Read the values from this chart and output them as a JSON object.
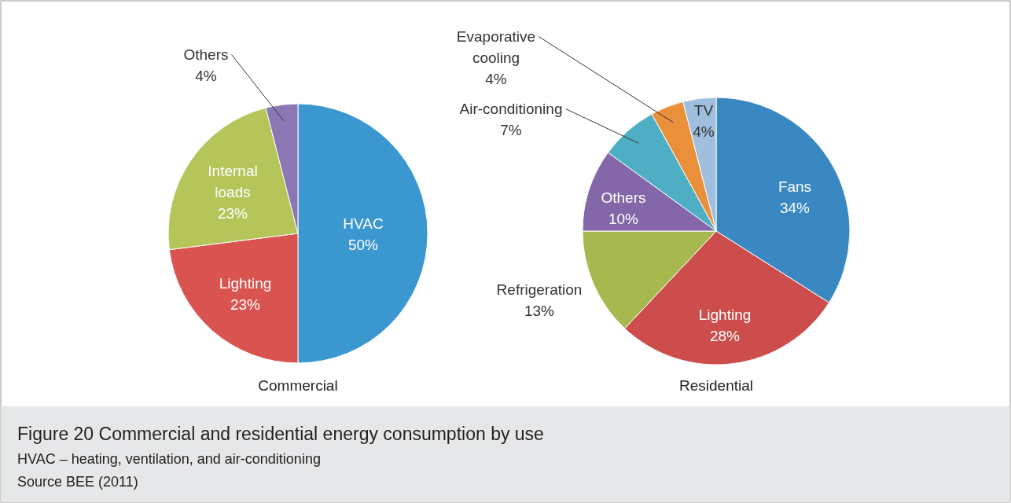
{
  "chart_data": [
    {
      "type": "pie",
      "title": "Commercial",
      "categories": [
        "HVAC",
        "Lighting",
        "Internal loads",
        "Others"
      ],
      "values": [
        50,
        23,
        23,
        4
      ],
      "value_labels": [
        "50%",
        "23%",
        "23%",
        "4%"
      ],
      "colors": [
        "#3a97cf",
        "#d95450",
        "#b5c55a",
        "#8a78b5"
      ],
      "annotations": [
        "Figure 20 Commercial and residential energy consumption by use",
        "HVAC – heating, ventilation, and air-conditioning",
        "Source BEE (2011)"
      ]
    },
    {
      "type": "pie",
      "title": "Residential",
      "categories": [
        "Fans",
        "Lighting",
        "Refrigeration",
        "Others",
        "Air-conditioning",
        "Evaporative cooling",
        "TV"
      ],
      "values": [
        34,
        28,
        13,
        10,
        7,
        4,
        4
      ],
      "value_labels": [
        "34%",
        "28%",
        "13%",
        "10%",
        "7%",
        "4%",
        "4%"
      ],
      "colors": [
        "#3a88c2",
        "#cc4d4b",
        "#a7b84f",
        "#8467a8",
        "#4eafc4",
        "#ea8f3a",
        "#a0bfdf"
      ]
    }
  ]
}
